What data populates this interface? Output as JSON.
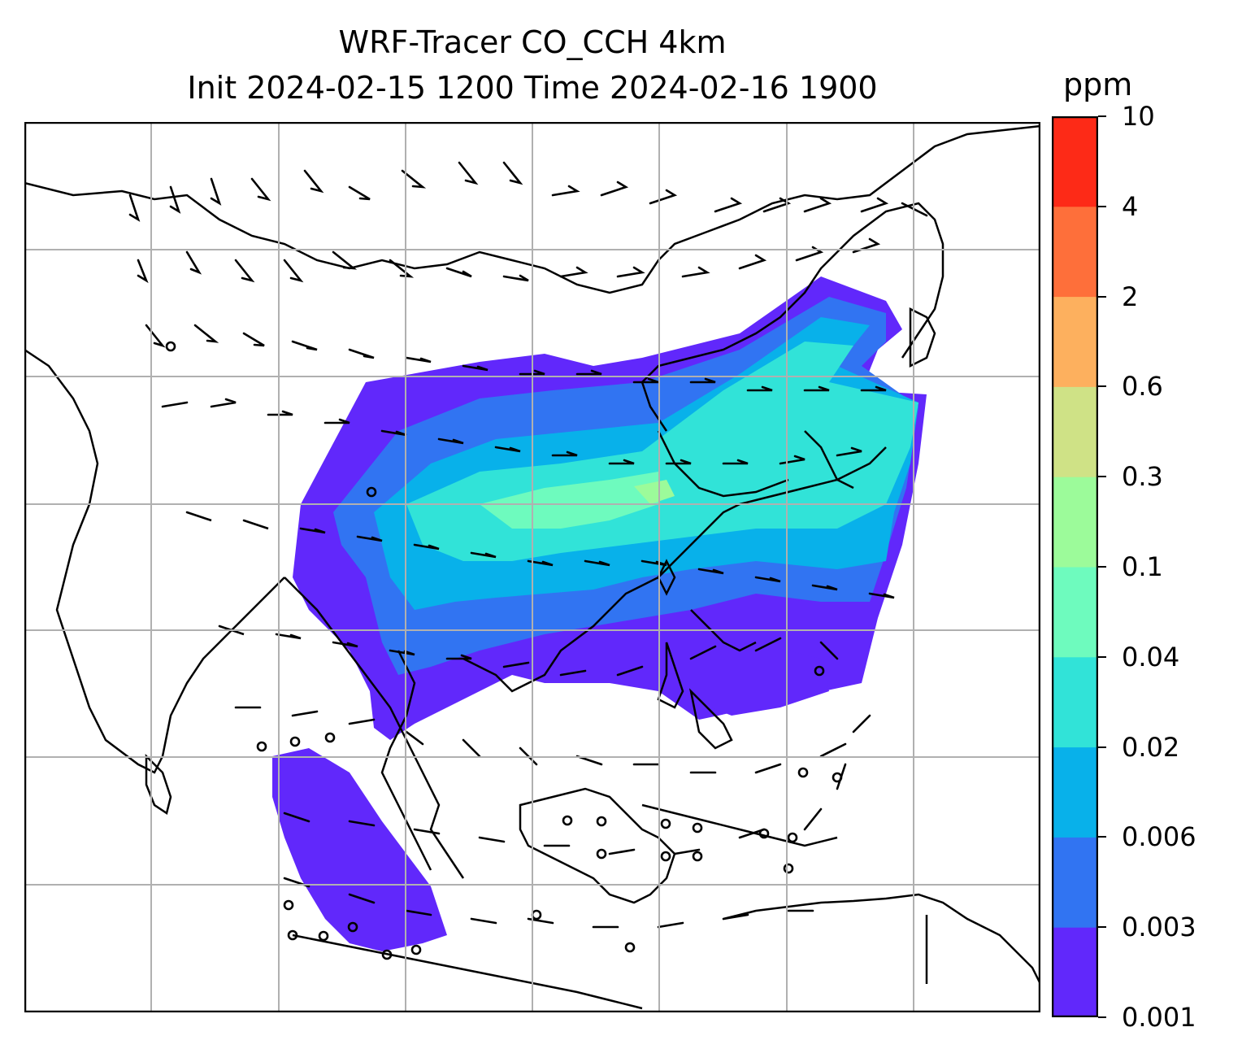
{
  "title": {
    "line1": "WRF-Tracer CO_CCH 4km",
    "line2": "Init 2024-02-15 1200 Time 2024-02-16 1900"
  },
  "colorbar": {
    "unit": "ppm",
    "levels": [
      "0.001",
      "0.003",
      "0.006",
      "0.02",
      "0.04",
      "0.1",
      "0.3",
      "0.6",
      "2",
      "4",
      "10"
    ],
    "colors": [
      "#6128fb",
      "#3174f2",
      "#08b1ea",
      "#31e3d8",
      "#6efbbe",
      "#9cfb9a",
      "#cfe286",
      "#fdb05e",
      "#fe6f3a",
      "#fd2a17"
    ]
  },
  "map": {
    "coastline_color": "#000000",
    "gridline_color": "#b0b0b0",
    "wind_barb_color": "#000000",
    "plume_levels_shown": [
      "0.001",
      "0.003",
      "0.006",
      "0.02",
      "0.04",
      "0.1"
    ]
  }
}
